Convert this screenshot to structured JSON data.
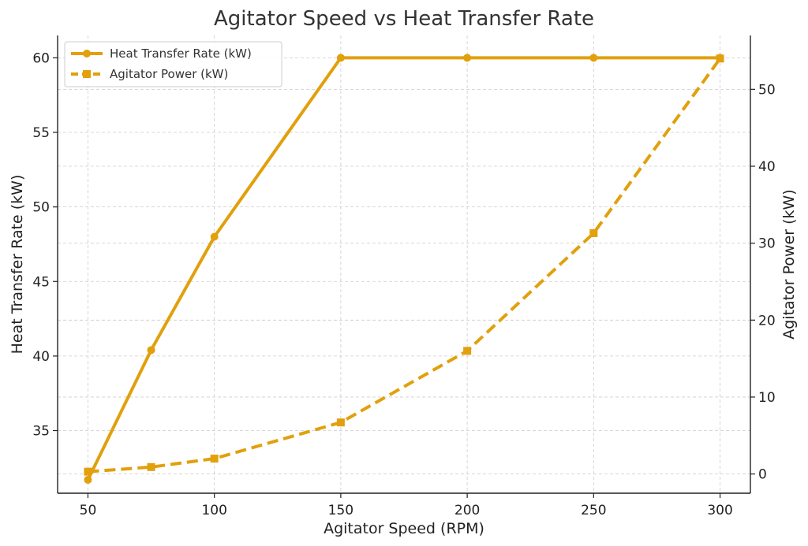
{
  "chart_data": {
    "type": "line",
    "title": "Agitator Speed vs Heat Transfer Rate",
    "xlabel": "Agitator Speed (RPM)",
    "ylabel": "Heat Transfer Rate (kW)",
    "y2label": "Agitator Power (kW)",
    "x": [
      50,
      75,
      100,
      150,
      200,
      250,
      300
    ],
    "xticks": [
      50,
      100,
      150,
      200,
      250,
      300
    ],
    "xlim": [
      38,
      312
    ],
    "ylim": [
      30.8,
      61.5
    ],
    "yticks": [
      35,
      40,
      45,
      50,
      55,
      60
    ],
    "y2lim": [
      -2.5,
      57
    ],
    "y2ticks": [
      0,
      10,
      20,
      30,
      40,
      50
    ],
    "grid": true,
    "legend_position": "top-left",
    "series": [
      {
        "name": "Heat Transfer Rate (kW)",
        "axis": "left",
        "style": "solid",
        "marker": "circle",
        "color": "#E1A00C",
        "values": [
          31.7,
          40.4,
          48.0,
          60.0,
          60.0,
          60.0,
          60.0
        ]
      },
      {
        "name": "Agitator Power (kW)",
        "axis": "right",
        "style": "dashed",
        "marker": "square",
        "color": "#E1A00C",
        "values": [
          0.3,
          0.9,
          2.0,
          6.7,
          16.0,
          31.3,
          54.0
        ]
      }
    ]
  }
}
